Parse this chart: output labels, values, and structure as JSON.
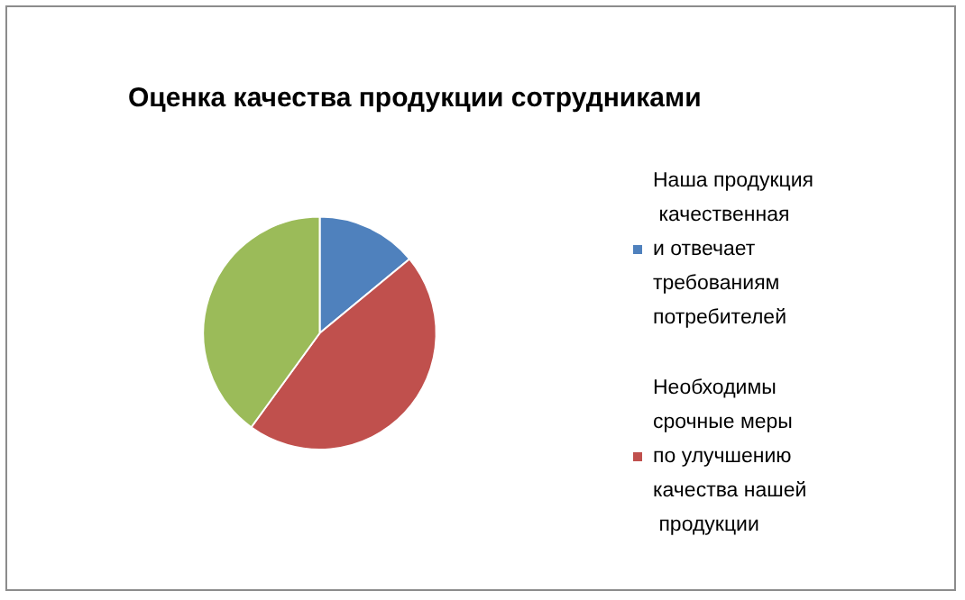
{
  "chart_data": {
    "type": "pie",
    "title": "Оценка качества продукции сотрудниками",
    "categories": [
      "Наша продукция качественная и отвечает требованиям потребителей",
      "Необходимы срочные меры по улучшению качества нашей продукции",
      null
    ],
    "values": [
      14,
      46,
      40
    ],
    "colors": [
      "#4f81bd",
      "#c0504d",
      "#9bbb59"
    ],
    "legend": "right"
  }
}
